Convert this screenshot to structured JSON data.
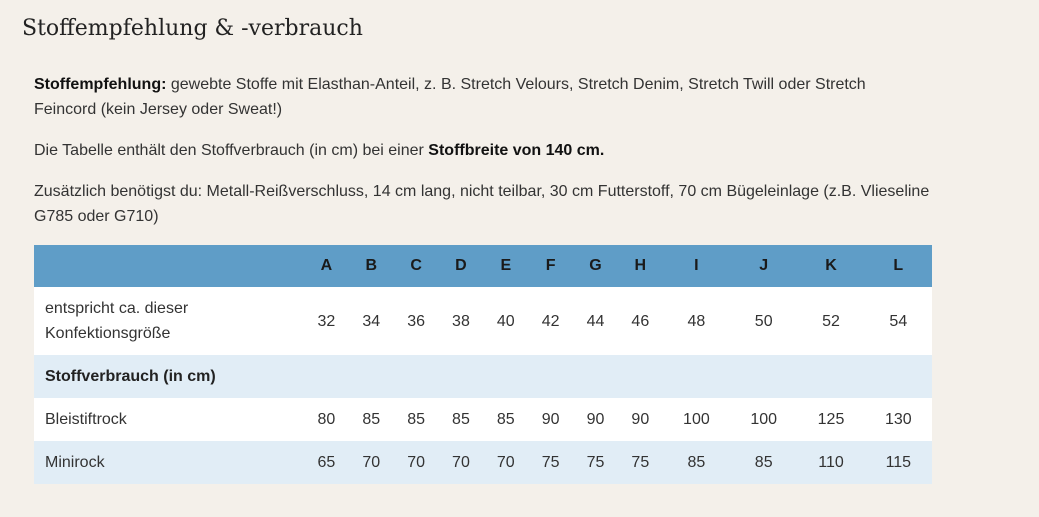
{
  "title": "Stoffempfehlung & -verbrauch",
  "p1": {
    "bold": "Stoffempfehlung:",
    "text": " gewebte Stoffe mit Elasthan-Anteil, z. B. Stretch Velours, Stretch Denim, Stretch Twill oder Stretch Feincord (kein Jersey oder Sweat!)"
  },
  "p2": {
    "text": "Die Tabelle enthält den Stoffverbrauch (in cm) bei einer ",
    "bold": "Stoffbreite von 140 cm."
  },
  "p3": {
    "text": "Zusätzlich benötigst du: Metall-Reißverschluss, 14 cm lang, nicht teilbar, 30 cm Futterstoff, 70 cm Bügeleinlage (z.B. Vlieseline G785 oder G710)"
  },
  "table": {
    "headers": [
      "A",
      "B",
      "C",
      "D",
      "E",
      "F",
      "G",
      "H",
      "I",
      "J",
      "K",
      "L"
    ],
    "size_row": {
      "label": "entspricht ca. dieser Konfektionsgröße",
      "values": [
        "32",
        "34",
        "36",
        "38",
        "40",
        "42",
        "44",
        "46",
        "48",
        "50",
        "52",
        "54"
      ]
    },
    "section_label": "Stoffverbrauch (in cm)",
    "rows": [
      {
        "label": "Bleistiftrock",
        "values": [
          "80",
          "85",
          "85",
          "85",
          "85",
          "90",
          "90",
          "90",
          "100",
          "100",
          "125",
          "130"
        ]
      },
      {
        "label": "Minirock",
        "values": [
          "65",
          "70",
          "70",
          "70",
          "70",
          "75",
          "75",
          "75",
          "85",
          "85",
          "110",
          "115"
        ]
      }
    ]
  },
  "colors": {
    "background": "#f4f0ea",
    "header": "#5f9dc7",
    "row_alt": "#e1edf6"
  }
}
